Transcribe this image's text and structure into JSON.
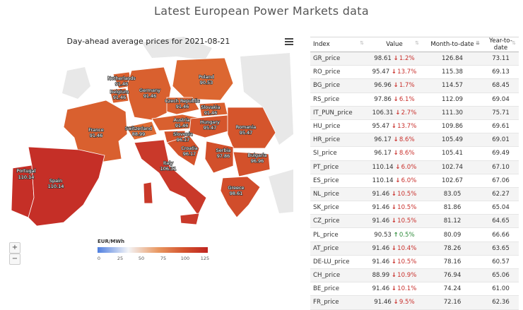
{
  "page": {
    "title": "Latest European Power Markets data"
  },
  "map": {
    "title": "Day-ahead average prices for 2021-08-21",
    "legend": {
      "title": "EUR/MWh",
      "ticks": [
        "0",
        "25",
        "50",
        "75",
        "100",
        "125"
      ],
      "min": 0,
      "max": 125
    },
    "zoom_in_label": "+",
    "zoom_out_label": "−",
    "countries": [
      {
        "id": "netherlands",
        "name": "Netherlands",
        "value": "91.46",
        "color": "#d9602f"
      },
      {
        "id": "belgium",
        "name": "Belgium",
        "value": "91.46",
        "color": "#d9602f"
      },
      {
        "id": "germany",
        "name": "Germany",
        "value": "91.46",
        "color": "#d9602f"
      },
      {
        "id": "poland",
        "name": "Poland",
        "value": "90.53",
        "color": "#dc6731"
      },
      {
        "id": "czech",
        "name": "Czech Republic",
        "value": "91.46",
        "color": "#d9602f"
      },
      {
        "id": "slovakia",
        "name": "Slovakia",
        "value": "91.46",
        "color": "#d9602f"
      },
      {
        "id": "austria",
        "name": "Austria",
        "value": "91.46",
        "color": "#d9602f"
      },
      {
        "id": "hungary",
        "name": "Hungary",
        "value": "95.47",
        "color": "#d5552c"
      },
      {
        "id": "switzerland",
        "name": "Switzerland",
        "value": "88.99",
        "color": "#de6c34"
      },
      {
        "id": "france",
        "name": "France",
        "value": "91.46",
        "color": "#d9602f"
      },
      {
        "id": "slovenia",
        "name": "Slovenia",
        "value": "96.17",
        "color": "#d4532b"
      },
      {
        "id": "croatia",
        "name": "Croatia",
        "value": "96.17",
        "color": "#d4532b"
      },
      {
        "id": "romania",
        "name": "Romania",
        "value": "95.47",
        "color": "#d5552c"
      },
      {
        "id": "serbia",
        "name": "Serbia",
        "value": "97.86",
        "color": "#d2502b"
      },
      {
        "id": "bulgaria",
        "name": "Bulgaria",
        "value": "96.96",
        "color": "#d3512b"
      },
      {
        "id": "italy",
        "name": "Italy",
        "value": "106.31",
        "color": "#c9392a"
      },
      {
        "id": "portugal",
        "name": "Portugal",
        "value": "110.14",
        "color": "#c52f27"
      },
      {
        "id": "spain",
        "name": "Spain",
        "value": "110.14",
        "color": "#c52f27"
      },
      {
        "id": "greece",
        "name": "Greece",
        "value": "98.61",
        "color": "#d14d2b"
      }
    ]
  },
  "table": {
    "headers": [
      "Index",
      "Value",
      "Month-to-date",
      "Year-to-date"
    ],
    "rows": [
      {
        "index": "GR_price",
        "value": "98.61",
        "dir": "down",
        "change": "1.2%",
        "mtd": "126.84",
        "ytd": "73.11"
      },
      {
        "index": "RO_price",
        "value": "95.47",
        "dir": "down",
        "change": "13.7%",
        "mtd": "115.38",
        "ytd": "69.13"
      },
      {
        "index": "BG_price",
        "value": "96.96",
        "dir": "down",
        "change": "1.7%",
        "mtd": "114.57",
        "ytd": "68.45"
      },
      {
        "index": "RS_price",
        "value": "97.86",
        "dir": "down",
        "change": "6.1%",
        "mtd": "112.09",
        "ytd": "69.04"
      },
      {
        "index": "IT_PUN_price",
        "value": "106.31",
        "dir": "down",
        "change": "2.7%",
        "mtd": "111.30",
        "ytd": "75.71"
      },
      {
        "index": "HU_price",
        "value": "95.47",
        "dir": "down",
        "change": "13.7%",
        "mtd": "109.86",
        "ytd": "69.61"
      },
      {
        "index": "HR_price",
        "value": "96.17",
        "dir": "down",
        "change": "8.6%",
        "mtd": "105.49",
        "ytd": "69.01"
      },
      {
        "index": "SI_price",
        "value": "96.17",
        "dir": "down",
        "change": "8.6%",
        "mtd": "105.41",
        "ytd": "69.49"
      },
      {
        "index": "PT_price",
        "value": "110.14",
        "dir": "down",
        "change": "6.0%",
        "mtd": "102.74",
        "ytd": "67.10"
      },
      {
        "index": "ES_price",
        "value": "110.14",
        "dir": "down",
        "change": "6.0%",
        "mtd": "102.67",
        "ytd": "67.06"
      },
      {
        "index": "NL_price",
        "value": "91.46",
        "dir": "down",
        "change": "10.5%",
        "mtd": "83.05",
        "ytd": "62.27"
      },
      {
        "index": "SK_price",
        "value": "91.46",
        "dir": "down",
        "change": "10.5%",
        "mtd": "81.86",
        "ytd": "65.04"
      },
      {
        "index": "CZ_price",
        "value": "91.46",
        "dir": "down",
        "change": "10.5%",
        "mtd": "81.12",
        "ytd": "64.65"
      },
      {
        "index": "PL_price",
        "value": "90.53",
        "dir": "up",
        "change": "0.5%",
        "mtd": "80.09",
        "ytd": "66.66"
      },
      {
        "index": "AT_price",
        "value": "91.46",
        "dir": "down",
        "change": "10.4%",
        "mtd": "78.26",
        "ytd": "63.65"
      },
      {
        "index": "DE-LU_price",
        "value": "91.46",
        "dir": "down",
        "change": "10.5%",
        "mtd": "78.16",
        "ytd": "60.57"
      },
      {
        "index": "CH_price",
        "value": "88.99",
        "dir": "down",
        "change": "10.9%",
        "mtd": "76.94",
        "ytd": "65.06"
      },
      {
        "index": "BE_price",
        "value": "91.46",
        "dir": "down",
        "change": "10.1%",
        "mtd": "74.24",
        "ytd": "61.00"
      },
      {
        "index": "FR_price",
        "value": "91.46",
        "dir": "down",
        "change": "9.5%",
        "mtd": "72.16",
        "ytd": "62.36"
      }
    ]
  },
  "icons": {
    "sort": "sort-icon",
    "menu": "hamburger-menu-icon",
    "down": "arrow-down-icon",
    "up": "arrow-up-icon"
  }
}
